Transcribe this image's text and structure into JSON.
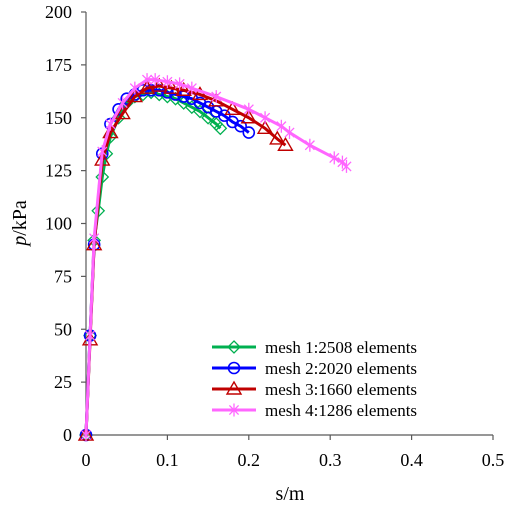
{
  "chart_data": {
    "type": "line",
    "title": "",
    "xlabel": "s/m",
    "ylabel_italic": "p",
    "ylabel_rest": "/kPa",
    "xlim": [
      0,
      0.5
    ],
    "ylim": [
      0,
      200
    ],
    "xticks": [
      0,
      0.1,
      0.2,
      0.3,
      0.4,
      0.5
    ],
    "xtick_labels": [
      "0",
      "0.1",
      "0.2",
      "0.3",
      "0.4",
      "0.5"
    ],
    "yticks": [
      0,
      25,
      50,
      75,
      100,
      125,
      150,
      175,
      200
    ],
    "ytick_labels": [
      "0",
      "25",
      "50",
      "75",
      "100",
      "125",
      "150",
      "175",
      "200"
    ],
    "grid": false,
    "legend_position": "bottom-right",
    "series": [
      {
        "name": "mesh 1:2508 elements",
        "color": "#00b050",
        "marker": "diamond",
        "x": [
          0,
          0.005,
          0.01,
          0.015,
          0.02,
          0.025,
          0.03,
          0.04,
          0.05,
          0.06,
          0.07,
          0.08,
          0.09,
          0.1,
          0.11,
          0.12,
          0.13,
          0.14,
          0.15,
          0.16,
          0.165
        ],
        "y": [
          0,
          47,
          92,
          106,
          122,
          133,
          141,
          150,
          157,
          160,
          161,
          162,
          161,
          160,
          159,
          157,
          155,
          153,
          150,
          147,
          145
        ]
      },
      {
        "name": "mesh 2:2020 elements",
        "color": "#0000ff",
        "marker": "circle",
        "x": [
          0,
          0.005,
          0.01,
          0.02,
          0.03,
          0.04,
          0.05,
          0.06,
          0.07,
          0.08,
          0.09,
          0.1,
          0.11,
          0.12,
          0.13,
          0.14,
          0.15,
          0.16,
          0.17,
          0.18,
          0.19,
          0.2
        ],
        "y": [
          0,
          47,
          90,
          133,
          147,
          154,
          159,
          161,
          163,
          163,
          163,
          162,
          161,
          160,
          159,
          157,
          155,
          153,
          151,
          148,
          146,
          143
        ]
      },
      {
        "name": "mesh 3:1660 elements",
        "color": "#c00000",
        "marker": "triangle",
        "x": [
          0,
          0.005,
          0.01,
          0.02,
          0.03,
          0.045,
          0.06,
          0.075,
          0.09,
          0.105,
          0.12,
          0.14,
          0.16,
          0.18,
          0.2,
          0.22,
          0.235,
          0.245
        ],
        "y": [
          0,
          45,
          90,
          130,
          143,
          152,
          160,
          164,
          165,
          164,
          163,
          161,
          158,
          154,
          150,
          145,
          140,
          137
        ]
      },
      {
        "name": "mesh 4:1286 elements",
        "color": "#ff66ff",
        "marker": "star",
        "x": [
          0,
          0.005,
          0.01,
          0.02,
          0.03,
          0.045,
          0.06,
          0.075,
          0.085,
          0.1,
          0.115,
          0.13,
          0.16,
          0.2,
          0.22,
          0.24,
          0.25,
          0.275,
          0.305,
          0.315,
          0.32
        ],
        "y": [
          0,
          47,
          93,
          134,
          147,
          157,
          164,
          168,
          168,
          167,
          166,
          164,
          160,
          154,
          150,
          146,
          143,
          137,
          131,
          129,
          127
        ]
      }
    ]
  }
}
